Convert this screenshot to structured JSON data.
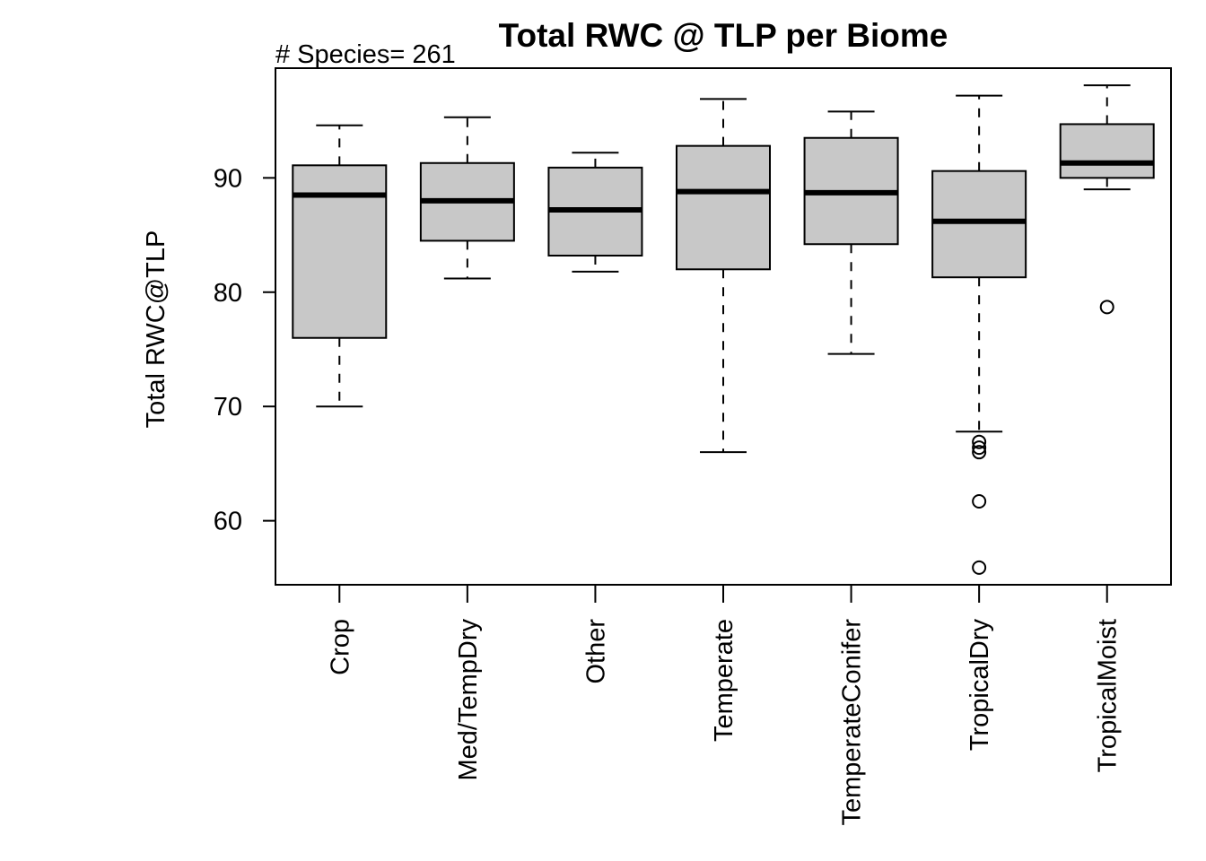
{
  "chart_data": {
    "type": "boxplot",
    "title": "Total RWC @ TLP per Biome",
    "subtitle": "# Species= 261",
    "xlabel": "",
    "ylabel": "Total RWC@TLP",
    "ylim": [
      54.4,
      99.6
    ],
    "yticks": [
      60,
      70,
      80,
      90
    ],
    "grid": false,
    "box_fill": "#c8c8c8",
    "categories": [
      "Crop",
      "Med/TempDry",
      "Other",
      "Temperate",
      "TemperateConifer",
      "TropicalDry",
      "TropicalMoist"
    ],
    "boxes": [
      {
        "whisker_low": 70.0,
        "q1": 76.0,
        "median": 88.5,
        "q3": 91.1,
        "whisker_high": 94.6,
        "outliers": []
      },
      {
        "whisker_low": 81.2,
        "q1": 84.5,
        "median": 88.0,
        "q3": 91.3,
        "whisker_high": 95.3,
        "outliers": []
      },
      {
        "whisker_low": 81.8,
        "q1": 83.2,
        "median": 87.2,
        "q3": 90.9,
        "whisker_high": 92.2,
        "outliers": []
      },
      {
        "whisker_low": 66.0,
        "q1": 82.0,
        "median": 88.8,
        "q3": 92.8,
        "whisker_high": 96.9,
        "outliers": []
      },
      {
        "whisker_low": 74.6,
        "q1": 84.2,
        "median": 88.7,
        "q3": 93.5,
        "whisker_high": 95.8,
        "outliers": []
      },
      {
        "whisker_low": 67.8,
        "q1": 81.3,
        "median": 86.2,
        "q3": 90.6,
        "whisker_high": 97.2,
        "outliers": [
          55.9,
          61.7,
          66.0,
          66.4,
          66.9
        ]
      },
      {
        "whisker_low": 89.0,
        "q1": 90.0,
        "median": 91.3,
        "q3": 94.7,
        "whisker_high": 98.1,
        "outliers": [
          78.7
        ]
      }
    ]
  }
}
